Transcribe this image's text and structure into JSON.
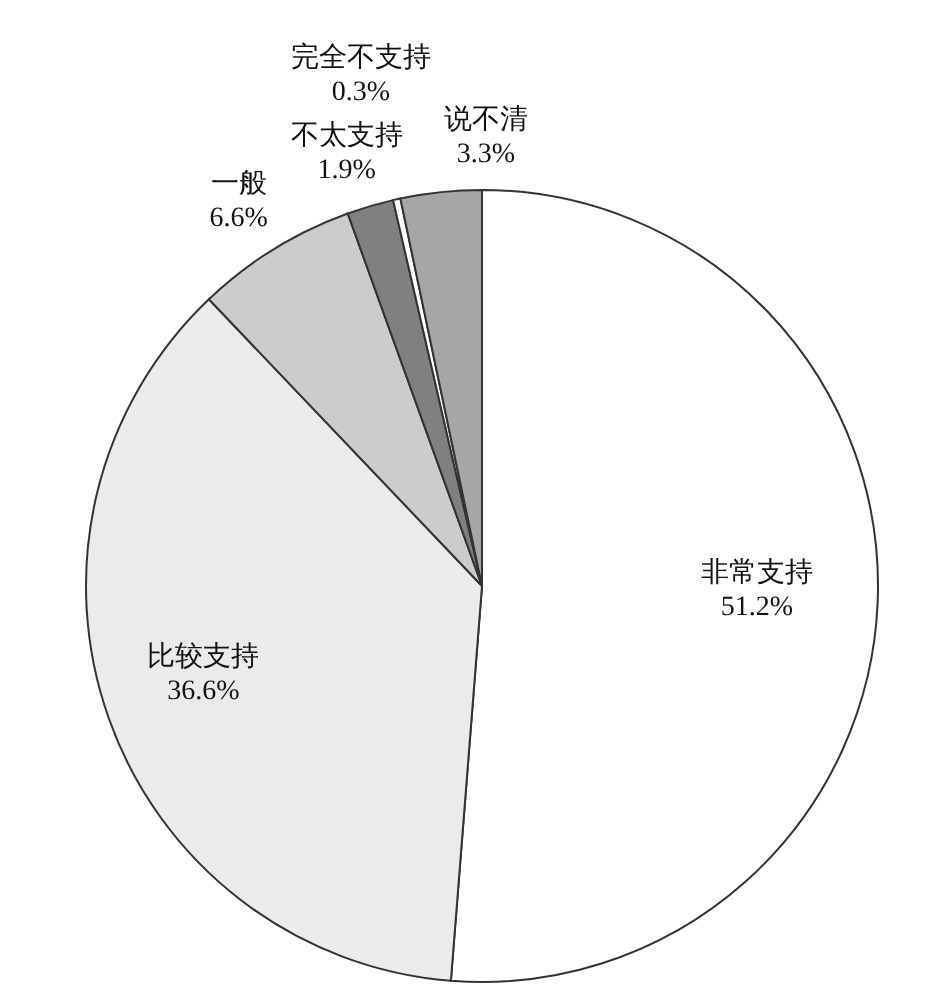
{
  "chart_data": {
    "type": "pie",
    "categories": [
      "非常支持",
      "比较支持",
      "一般",
      "不太支持",
      "完全不支持",
      "说不清"
    ],
    "values": [
      51.2,
      36.6,
      6.6,
      1.9,
      0.3,
      3.3
    ],
    "value_labels": [
      "51.2%",
      "36.6%",
      "6.6%",
      "1.9%",
      "0.3%",
      "3.3%"
    ],
    "colors": [
      "#ffffff",
      "#ebebeb",
      "#cccccc",
      "#808080",
      "#ffffff",
      "#a6a6a6"
    ],
    "legend": false
  }
}
